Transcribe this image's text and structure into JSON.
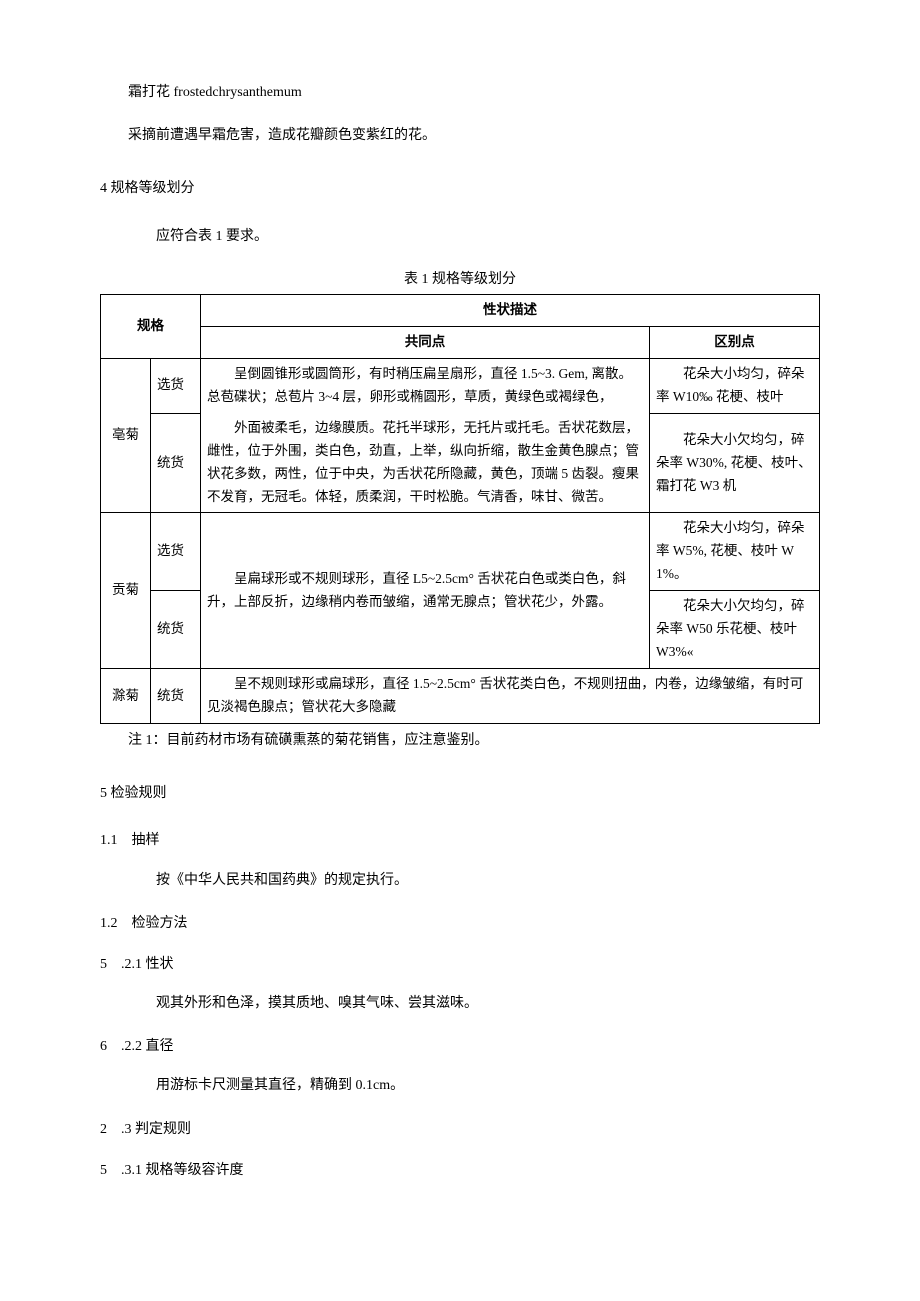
{
  "intro": {
    "term": "霜打花 frostedchrysanthemum",
    "desc": "采摘前遭遇早霜危害，造成花瓣颜色变紫红的花。"
  },
  "sec4": {
    "title": "4 规格等级划分",
    "req": "应符合表 1 要求。",
    "caption": "表 1 规格等级划分"
  },
  "table": {
    "header_spec": "规格",
    "header_desc": "性状描述",
    "header_common": "共同点",
    "header_diff": "区别点",
    "rows": {
      "r1_name": "亳菊",
      "r1_sel": "选货",
      "r1_common_top": "呈倒圆锥形或圆筒形，有时稍压扁呈扇形，直径 1.5~3. Gem, 离散。总苞碟状；总苞片 3~4 层，卵形或椭圆形，草质，黄绿色或褐绿色，",
      "r1_common_mid": "外面被柔毛，边缘膜质。花托半球形，无托片或托毛。舌状花数层，雌性，位于外围，类白色，劲直，上举，纵向折缩，散生金黄色腺点；管状花多数，两性，位于中央，为舌状花所隐藏，黄色，顶端 5 齿裂。瘦果不发育，无冠毛。体轻，质柔润，干时松脆。气清香，味甘、微苦。",
      "r1_diff_sel": "花朵大小均匀，碎朵率 W10‰ 花梗、枝叶",
      "r1_tong": "统货",
      "r1_diff_tong": "花朵大小欠均匀，碎朵率 W30%, 花梗、枝叶、霜打花 W3 机",
      "r2_name": "贡菊",
      "r2_sel": "选货",
      "r2_common": "呈扁球形或不规则球形，直径 L5~2.5cm° 舌状花白色或类白色，斜升，上部反折，边缘稍内卷而皱缩，通常无腺点；管状花少，外露。",
      "r2_diff_sel": "花朵大小均匀，碎朵率 W5%, 花梗、枝叶 W1%。",
      "r2_tong": "统货",
      "r2_diff_tong": "花朵大小欠均匀，碎朵率 W50 乐花梗、枝叶 W3%«",
      "r3_name": "滁菊",
      "r3_tong": "统货",
      "r3_common": "呈不规则球形或扁球形，直径 1.5~2.5cm° 舌状花类白色，不规则扭曲，内卷，边缘皱缩，有时可见淡褐色腺点；管状花大多隐藏"
    },
    "note": "注 1：目前药材市场有硫磺熏蒸的菊花销售，应注意鉴别。"
  },
  "sec5": {
    "title": "5 检验规则",
    "s51": "1.1　抽样",
    "s51_body": "按《中华人民共和国药典》的规定执行。",
    "s52": "1.2　检验方法",
    "s521": "5　.2.1 性状",
    "s521_body": "观其外形和色泽，摸其质地、嗅其气味、尝其滋味。",
    "s522": "6　.2.2 直径",
    "s522_body": "用游标卡尺测量其直径，精确到 0.1cm。",
    "s53": "2　.3 判定规则",
    "s531": "5　.3.1 规格等级容许度"
  }
}
